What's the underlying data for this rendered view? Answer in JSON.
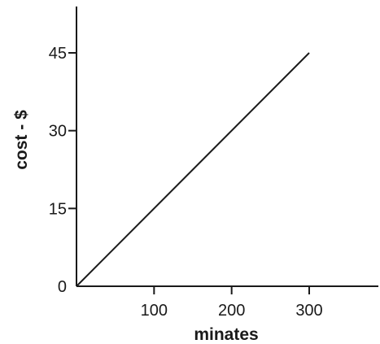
{
  "chart_data": {
    "type": "line",
    "xlabel": "minates",
    "ylabel": "cost - $",
    "xlim": [
      0,
      390
    ],
    "ylim": [
      0,
      54
    ],
    "x_ticks": [
      100,
      200,
      300
    ],
    "y_ticks": [
      0,
      15,
      30,
      45
    ],
    "grid": false,
    "series": [
      {
        "x": [
          0,
          300
        ],
        "y": [
          0,
          45
        ]
      }
    ],
    "colors": {
      "line": "#1a1a1a",
      "axis": "#1a1a1a"
    }
  }
}
